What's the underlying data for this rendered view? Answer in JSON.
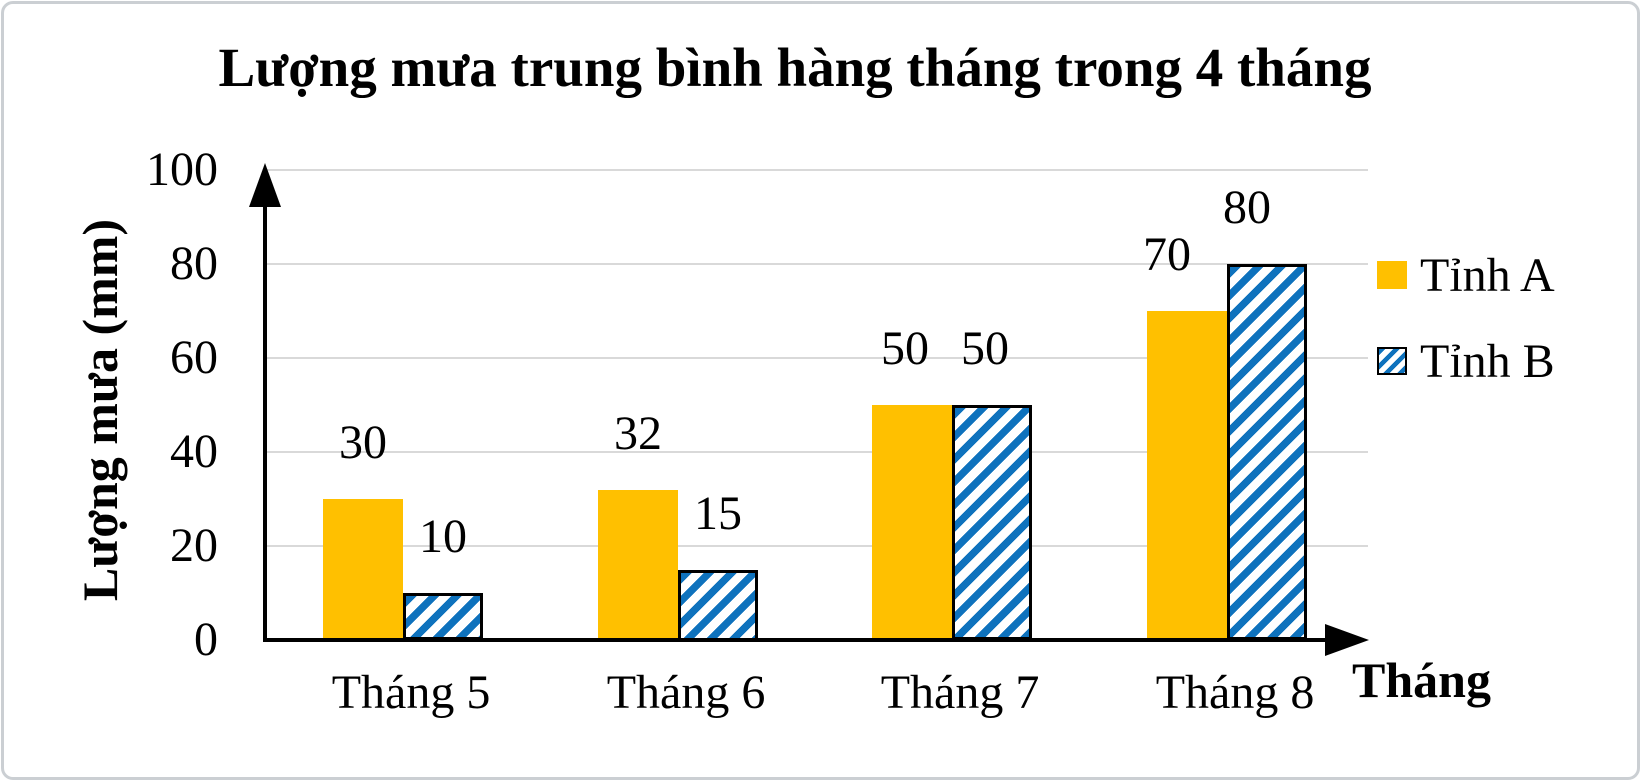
{
  "chart_data": {
    "type": "bar",
    "title": "Lượng mưa trung bình hàng tháng trong 4 tháng",
    "ylabel": "Lượng mưa (mm)",
    "xlabel": "Tháng",
    "categories": [
      "Tháng 5",
      "Tháng 6",
      "Tháng 7",
      "Tháng 8"
    ],
    "series": [
      {
        "name": "Tỉnh A",
        "values": [
          30,
          32,
          50,
          70
        ],
        "color": "#FFC000",
        "pattern": "solid"
      },
      {
        "name": "Tỉnh B",
        "values": [
          10,
          15,
          50,
          80
        ],
        "color": "#0E72BD",
        "pattern": "diagonal-hatch",
        "hatch_background": "#FFFFFF",
        "border_color": "#000000"
      }
    ],
    "value_labels": true,
    "ylim": [
      0,
      100
    ],
    "yticks": [
      0,
      20,
      40,
      60,
      80,
      100
    ],
    "grid": true,
    "gridline_color": "#D9D9D9",
    "axis_color": "#000000",
    "legend_position": "right",
    "legend": [
      "Tỉnh A",
      "Tỉnh B"
    ]
  }
}
